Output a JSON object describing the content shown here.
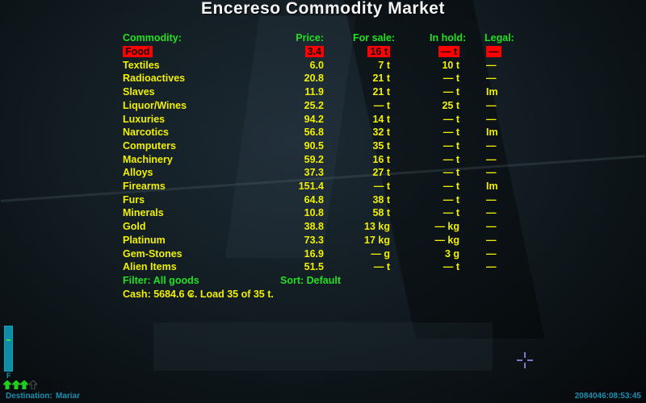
{
  "title": "Encereso Commodity Market",
  "headers": {
    "commodity": "Commodity:",
    "price": "Price:",
    "for_sale": "For sale:",
    "in_hold": "In hold:",
    "legal": "Legal:"
  },
  "rows": [
    {
      "name": "Food",
      "price": "3.4",
      "for_sale": "16 t",
      "in_hold": "— t",
      "legal": "—",
      "selected": true
    },
    {
      "name": "Textiles",
      "price": "6.0",
      "for_sale": "7 t",
      "in_hold": "10 t",
      "legal": "—"
    },
    {
      "name": "Radioactives",
      "price": "20.8",
      "for_sale": "21 t",
      "in_hold": "— t",
      "legal": "—"
    },
    {
      "name": "Slaves",
      "price": "11.9",
      "for_sale": "21 t",
      "in_hold": "— t",
      "legal": "Im"
    },
    {
      "name": "Liquor/Wines",
      "price": "25.2",
      "for_sale": "— t",
      "in_hold": "25 t",
      "legal": "—"
    },
    {
      "name": "Luxuries",
      "price": "94.2",
      "for_sale": "14 t",
      "in_hold": "— t",
      "legal": "—"
    },
    {
      "name": "Narcotics",
      "price": "56.8",
      "for_sale": "32 t",
      "in_hold": "— t",
      "legal": "Im"
    },
    {
      "name": "Computers",
      "price": "90.5",
      "for_sale": "35 t",
      "in_hold": "— t",
      "legal": "—"
    },
    {
      "name": "Machinery",
      "price": "59.2",
      "for_sale": "16 t",
      "in_hold": "— t",
      "legal": "—"
    },
    {
      "name": "Alloys",
      "price": "37.3",
      "for_sale": "27 t",
      "in_hold": "— t",
      "legal": "—"
    },
    {
      "name": "Firearms",
      "price": "151.4",
      "for_sale": "— t",
      "in_hold": "— t",
      "legal": "Im"
    },
    {
      "name": "Furs",
      "price": "64.8",
      "for_sale": "38 t",
      "in_hold": "— t",
      "legal": "—"
    },
    {
      "name": "Minerals",
      "price": "10.8",
      "for_sale": "58 t",
      "in_hold": "— t",
      "legal": "—"
    },
    {
      "name": "Gold",
      "price": "38.8",
      "for_sale": "13 kg",
      "in_hold": "— kg",
      "legal": "—"
    },
    {
      "name": "Platinum",
      "price": "73.3",
      "for_sale": "17 kg",
      "in_hold": "— kg",
      "legal": "—"
    },
    {
      "name": "Gem-Stones",
      "price": "16.9",
      "for_sale": "— g",
      "in_hold": "3 g",
      "legal": "—"
    },
    {
      "name": "Alien Items",
      "price": "51.5",
      "for_sale": "— t",
      "in_hold": "— t",
      "legal": "—"
    }
  ],
  "filter": "Filter: All goods",
  "sort": "Sort: Default",
  "cash": "Cash: 5684.6 ₢. Load 35 of 35 t.",
  "hud": {
    "fuel_label": "F",
    "destination_label": "Destination:",
    "destination_value": "Mariar",
    "clock": "2084046:08:53:45",
    "missiles": [
      true,
      true,
      true,
      false
    ]
  },
  "colors": {
    "header": "#22e022",
    "row": "#f0f000",
    "selected_bg": "#ff0000",
    "hud": "#1b8fb0"
  }
}
